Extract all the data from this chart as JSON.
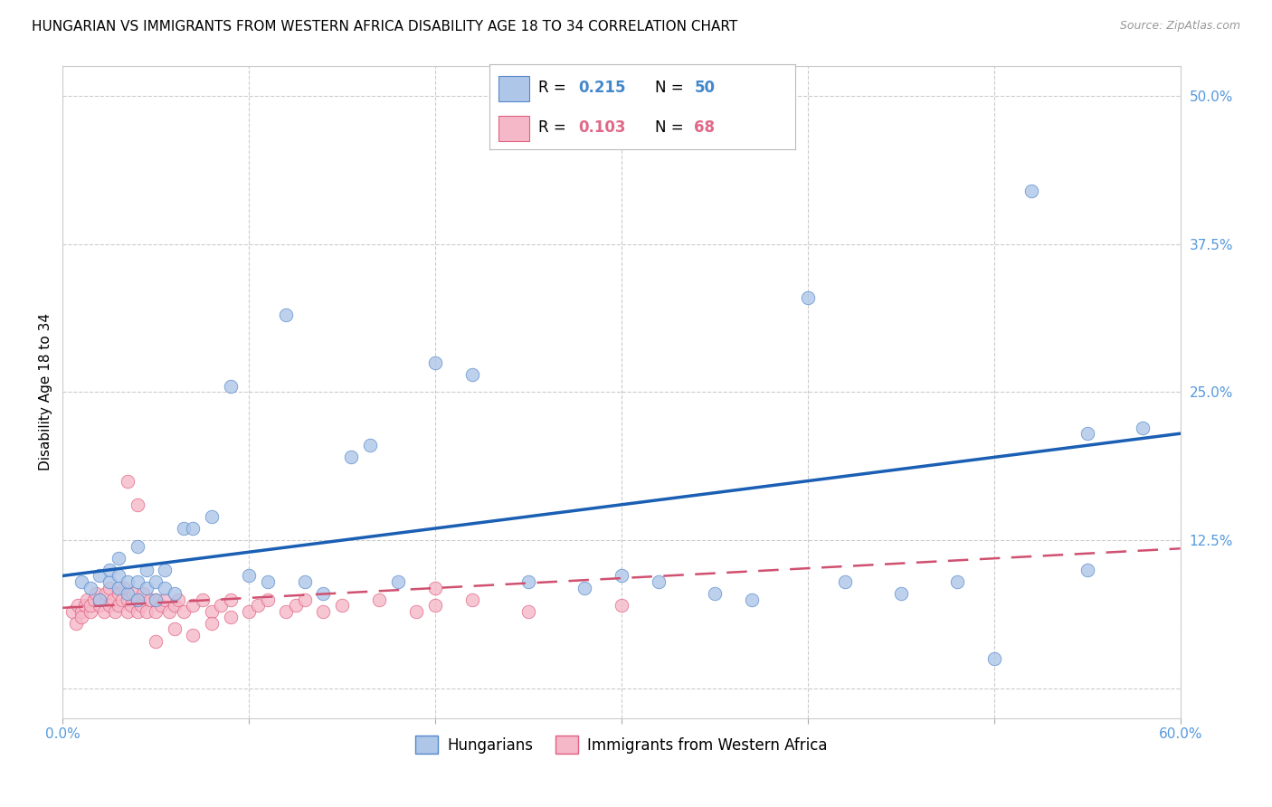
{
  "title": "HUNGARIAN VS IMMIGRANTS FROM WESTERN AFRICA DISABILITY AGE 18 TO 34 CORRELATION CHART",
  "source": "Source: ZipAtlas.com",
  "ylabel": "Disability Age 18 to 34",
  "xlim": [
    0.0,
    0.6
  ],
  "ylim": [
    -0.025,
    0.525
  ],
  "xticks": [
    0.0,
    0.1,
    0.2,
    0.3,
    0.4,
    0.5,
    0.6
  ],
  "xticklabels": [
    "0.0%",
    "",
    "",
    "",
    "",
    "",
    "60.0%"
  ],
  "yticks_right": [
    0.0,
    0.125,
    0.25,
    0.375,
    0.5
  ],
  "yticklabels_right": [
    "",
    "12.5%",
    "25.0%",
    "37.5%",
    "50.0%"
  ],
  "r_hungarian": 0.215,
  "n_hungarian": 50,
  "r_immigrants": 0.103,
  "n_immigrants": 68,
  "legend_label_1": "Hungarians",
  "legend_label_2": "Immigrants from Western Africa",
  "color_hungarian": "#aec6e8",
  "color_immigrant": "#f5b8c8",
  "color_hungarian_edge": "#5588cc",
  "color_immigrant_edge": "#e06080",
  "color_hungarian_line": "#1a5fb4",
  "color_immigrant_line": "#d05070",
  "color_text_blue": "#5599dd",
  "color_r_hungarian": "#4488cc",
  "color_r_immigrant": "#e06888",
  "background_color": "#ffffff",
  "grid_color": "#cccccc",
  "hungarian_x": [
    0.01,
    0.015,
    0.02,
    0.02,
    0.025,
    0.025,
    0.03,
    0.03,
    0.03,
    0.035,
    0.035,
    0.04,
    0.04,
    0.04,
    0.045,
    0.045,
    0.05,
    0.05,
    0.055,
    0.055,
    0.06,
    0.065,
    0.07,
    0.08,
    0.09,
    0.1,
    0.11,
    0.12,
    0.13,
    0.14,
    0.155,
    0.165,
    0.18,
    0.2,
    0.22,
    0.25,
    0.28,
    0.3,
    0.32,
    0.35,
    0.37,
    0.4,
    0.42,
    0.45,
    0.48,
    0.5,
    0.52,
    0.55,
    0.55,
    0.58
  ],
  "hungarian_y": [
    0.09,
    0.085,
    0.095,
    0.075,
    0.09,
    0.1,
    0.085,
    0.095,
    0.11,
    0.08,
    0.09,
    0.075,
    0.09,
    0.12,
    0.085,
    0.1,
    0.075,
    0.09,
    0.085,
    0.1,
    0.08,
    0.135,
    0.135,
    0.145,
    0.255,
    0.095,
    0.09,
    0.315,
    0.09,
    0.08,
    0.195,
    0.205,
    0.09,
    0.275,
    0.265,
    0.09,
    0.085,
    0.095,
    0.09,
    0.08,
    0.075,
    0.33,
    0.09,
    0.08,
    0.09,
    0.025,
    0.42,
    0.1,
    0.215,
    0.22
  ],
  "immigrant_x": [
    0.005,
    0.007,
    0.008,
    0.01,
    0.01,
    0.012,
    0.013,
    0.015,
    0.015,
    0.017,
    0.018,
    0.02,
    0.02,
    0.022,
    0.023,
    0.025,
    0.025,
    0.027,
    0.028,
    0.03,
    0.03,
    0.032,
    0.033,
    0.035,
    0.035,
    0.037,
    0.038,
    0.04,
    0.04,
    0.042,
    0.043,
    0.045,
    0.047,
    0.05,
    0.05,
    0.053,
    0.055,
    0.057,
    0.06,
    0.062,
    0.065,
    0.07,
    0.075,
    0.08,
    0.085,
    0.09,
    0.1,
    0.105,
    0.11,
    0.12,
    0.125,
    0.13,
    0.14,
    0.15,
    0.17,
    0.19,
    0.2,
    0.22,
    0.25,
    0.3,
    0.035,
    0.04,
    0.05,
    0.06,
    0.07,
    0.08,
    0.09,
    0.2
  ],
  "immigrant_y": [
    0.065,
    0.055,
    0.07,
    0.065,
    0.06,
    0.07,
    0.075,
    0.065,
    0.07,
    0.075,
    0.08,
    0.07,
    0.075,
    0.065,
    0.08,
    0.07,
    0.085,
    0.075,
    0.065,
    0.07,
    0.08,
    0.075,
    0.085,
    0.065,
    0.075,
    0.07,
    0.08,
    0.065,
    0.075,
    0.07,
    0.08,
    0.065,
    0.075,
    0.065,
    0.075,
    0.07,
    0.075,
    0.065,
    0.07,
    0.075,
    0.065,
    0.07,
    0.075,
    0.065,
    0.07,
    0.075,
    0.065,
    0.07,
    0.075,
    0.065,
    0.07,
    0.075,
    0.065,
    0.07,
    0.075,
    0.065,
    0.07,
    0.075,
    0.065,
    0.07,
    0.175,
    0.155,
    0.04,
    0.05,
    0.045,
    0.055,
    0.06,
    0.085
  ],
  "title_fontsize": 11,
  "axis_label_fontsize": 11,
  "tick_fontsize": 11,
  "legend_fontsize": 12,
  "trendline_h_x0": 0.0,
  "trendline_h_y0": 0.095,
  "trendline_h_x1": 0.6,
  "trendline_h_y1": 0.215,
  "trendline_i_x0": 0.0,
  "trendline_i_y0": 0.068,
  "trendline_i_x1": 0.6,
  "trendline_i_y1": 0.118
}
